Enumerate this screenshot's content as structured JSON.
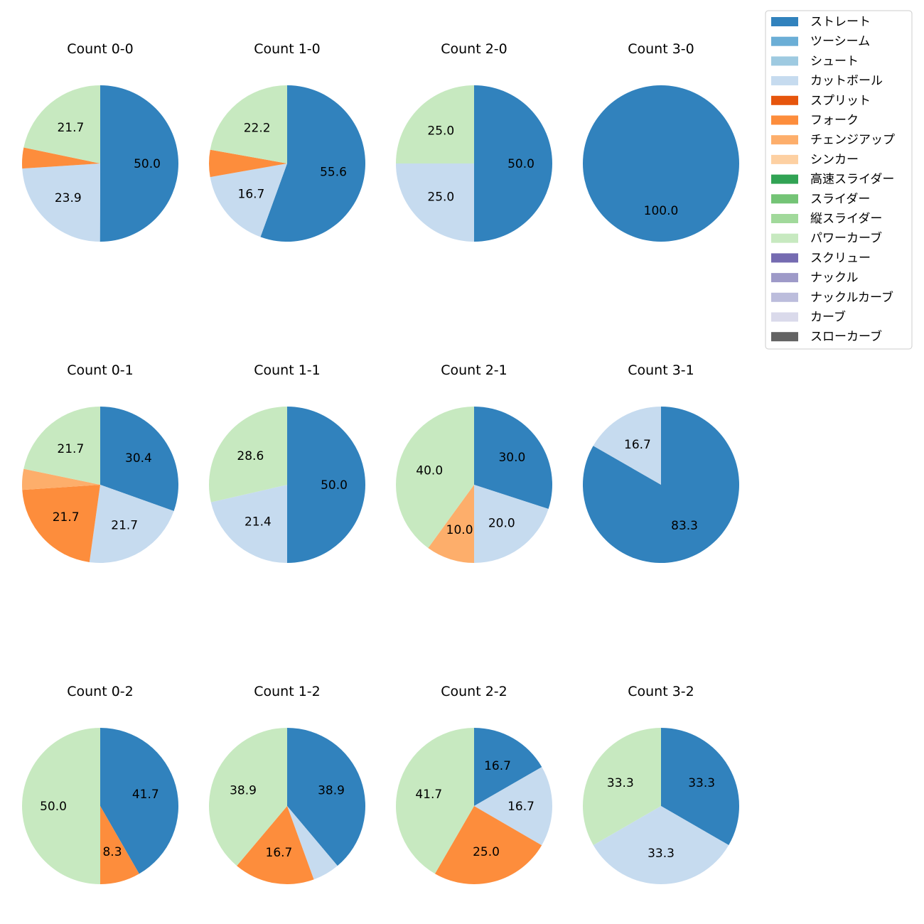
{
  "chart_data": {
    "type": "pie",
    "legend": {
      "placement": "top-right",
      "entries": [
        {
          "name": "ストレート",
          "color": "#3182bd"
        },
        {
          "name": "ツーシーム",
          "color": "#6baed6"
        },
        {
          "name": "シュート",
          "color": "#9ecae1"
        },
        {
          "name": "カットボール",
          "color": "#c6dbef"
        },
        {
          "name": "スプリット",
          "color": "#e6550d"
        },
        {
          "name": "フォーク",
          "color": "#fd8d3c"
        },
        {
          "name": "チェンジアップ",
          "color": "#fdae6b"
        },
        {
          "name": "シンカー",
          "color": "#fdd0a2"
        },
        {
          "name": "高速スライダー",
          "color": "#31a354"
        },
        {
          "name": "スライダー",
          "color": "#74c476"
        },
        {
          "name": "縦スライダー",
          "color": "#a1d99b"
        },
        {
          "name": "パワーカーブ",
          "color": "#c7e9c0"
        },
        {
          "name": "スクリュー",
          "color": "#756bb1"
        },
        {
          "name": "ナックル",
          "color": "#9e9ac8"
        },
        {
          "name": "ナックルカーブ",
          "color": "#bcbddc"
        },
        {
          "name": "カーブ",
          "color": "#dadaeb"
        },
        {
          "name": "スローカーブ",
          "color": "#636363"
        }
      ]
    },
    "pies": [
      {
        "title": "Count 0-0",
        "slices": [
          {
            "pitch": "ストレート",
            "value": 50.0
          },
          {
            "pitch": "カットボール",
            "value": 23.9
          },
          {
            "pitch": "フォーク",
            "value": 4.3
          },
          {
            "pitch": "パワーカーブ",
            "value": 21.7
          }
        ]
      },
      {
        "title": "Count 1-0",
        "slices": [
          {
            "pitch": "ストレート",
            "value": 55.6
          },
          {
            "pitch": "カットボール",
            "value": 16.7
          },
          {
            "pitch": "フォーク",
            "value": 5.6
          },
          {
            "pitch": "パワーカーブ",
            "value": 22.2
          }
        ]
      },
      {
        "title": "Count 2-0",
        "slices": [
          {
            "pitch": "ストレート",
            "value": 50.0
          },
          {
            "pitch": "カットボール",
            "value": 25.0
          },
          {
            "pitch": "パワーカーブ",
            "value": 25.0
          }
        ]
      },
      {
        "title": "Count 3-0",
        "slices": [
          {
            "pitch": "ストレート",
            "value": 100.0
          }
        ]
      },
      {
        "title": "Count 0-1",
        "slices": [
          {
            "pitch": "ストレート",
            "value": 30.4
          },
          {
            "pitch": "カットボール",
            "value": 21.7
          },
          {
            "pitch": "フォーク",
            "value": 21.7
          },
          {
            "pitch": "チェンジアップ",
            "value": 4.3
          },
          {
            "pitch": "パワーカーブ",
            "value": 21.7
          }
        ]
      },
      {
        "title": "Count 1-1",
        "slices": [
          {
            "pitch": "ストレート",
            "value": 50.0
          },
          {
            "pitch": "カットボール",
            "value": 21.4
          },
          {
            "pitch": "パワーカーブ",
            "value": 28.6
          }
        ]
      },
      {
        "title": "Count 2-1",
        "slices": [
          {
            "pitch": "ストレート",
            "value": 30.0
          },
          {
            "pitch": "カットボール",
            "value": 20.0
          },
          {
            "pitch": "チェンジアップ",
            "value": 10.0
          },
          {
            "pitch": "パワーカーブ",
            "value": 40.0
          }
        ]
      },
      {
        "title": "Count 3-1",
        "slices": [
          {
            "pitch": "ストレート",
            "value": 83.3
          },
          {
            "pitch": "カットボール",
            "value": 16.7
          }
        ]
      },
      {
        "title": "Count 0-2",
        "slices": [
          {
            "pitch": "ストレート",
            "value": 41.7
          },
          {
            "pitch": "フォーク",
            "value": 8.3
          },
          {
            "pitch": "パワーカーブ",
            "value": 50.0
          }
        ]
      },
      {
        "title": "Count 1-2",
        "slices": [
          {
            "pitch": "ストレート",
            "value": 38.9
          },
          {
            "pitch": "カットボール",
            "value": 5.6
          },
          {
            "pitch": "フォーク",
            "value": 16.7
          },
          {
            "pitch": "パワーカーブ",
            "value": 38.9
          }
        ]
      },
      {
        "title": "Count 2-2",
        "slices": [
          {
            "pitch": "ストレート",
            "value": 16.7
          },
          {
            "pitch": "カットボール",
            "value": 16.7
          },
          {
            "pitch": "フォーク",
            "value": 25.0
          },
          {
            "pitch": "パワーカーブ",
            "value": 41.7
          }
        ]
      },
      {
        "title": "Count 3-2",
        "slices": [
          {
            "pitch": "ストレート",
            "value": 33.3
          },
          {
            "pitch": "カットボール",
            "value": 33.3
          },
          {
            "pitch": "パワーカーブ",
            "value": 33.3
          }
        ]
      }
    ]
  }
}
